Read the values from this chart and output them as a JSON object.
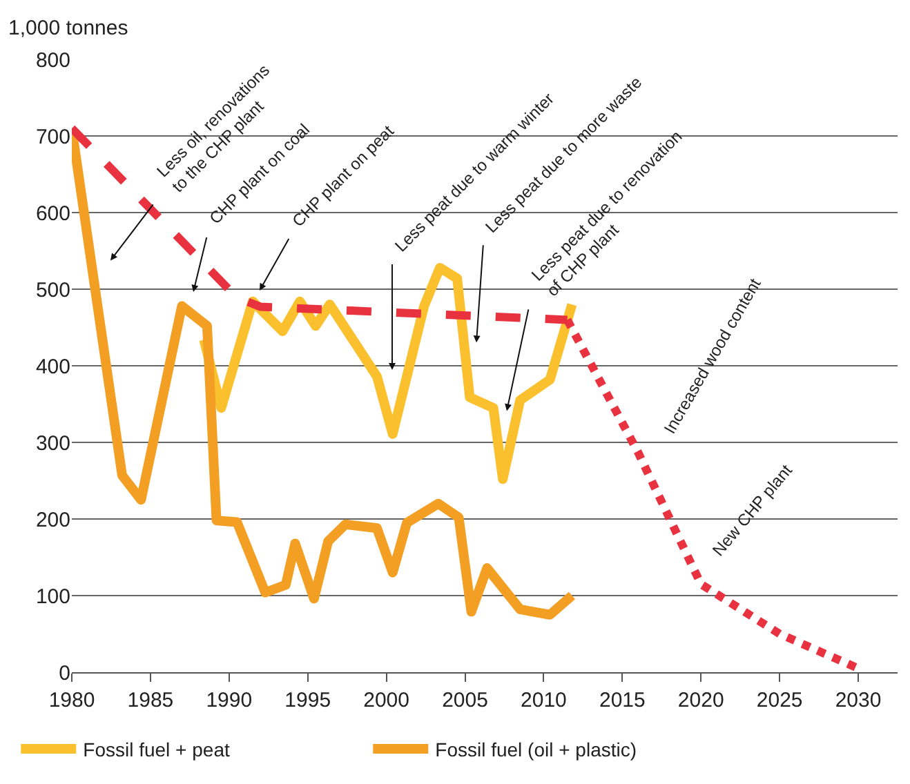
{
  "chart_data": {
    "type": "line",
    "ylabel": "1,000 tonnes",
    "xlim": [
      1980,
      2032.5
    ],
    "xticks": [
      1980,
      1985,
      1990,
      1995,
      2000,
      2005,
      2010,
      2015,
      2020,
      2025,
      2030
    ],
    "ylim": [
      0,
      800
    ],
    "yticks": [
      0,
      100,
      200,
      300,
      400,
      500,
      600,
      700,
      800
    ],
    "grid": "y",
    "legend": "bottom",
    "marker": "none",
    "series": [
      {
        "name": "Fossil fuel + peat",
        "color": "#fbc02d",
        "line_style": "solid",
        "x": [
          1988.4,
          1989.5,
          1991.5,
          1993.4,
          1994.5,
          1995.5,
          1996.4,
          1999.4,
          2000.4,
          2002.4,
          2003.4,
          2004.5,
          2005.3,
          2006.8,
          2007.4,
          2008.5,
          2010.4,
          2011.8
        ],
        "values": [
          434,
          345,
          484,
          445,
          484,
          452,
          480,
          386,
          311,
          478,
          528,
          514,
          359,
          345,
          252,
          355,
          382,
          480
        ]
      },
      {
        "name": "Fossil fuel (oil + plastic)",
        "color": "#f29f24",
        "line_style": "solid",
        "x": [
          1980,
          1983.2,
          1984.4,
          1987,
          1988.6,
          1989.2,
          1990.5,
          1992.3,
          1993.6,
          1994.2,
          1995.4,
          1996.3,
          1997.4,
          1999.4,
          2000.4,
          2001.3,
          2003.3,
          2004.6,
          2005.4,
          2006.4,
          2008.5,
          2010.4,
          2011.8
        ],
        "values": [
          710,
          257,
          225,
          478,
          452,
          198,
          196,
          104,
          114,
          168,
          96,
          171,
          193,
          188,
          130,
          195,
          220,
          202,
          79,
          136,
          82,
          75,
          100
        ]
      },
      {
        "color": "#e8323f",
        "line_style": "dashed",
        "x": [
          1980,
          1990.5,
          1992,
          2000,
          2011.5
        ],
        "values": [
          710,
          489,
          477,
          470,
          460
        ]
      },
      {
        "color": "#e8323f",
        "line_style": "dotted",
        "x": [
          2011.5,
          2016,
          2020,
          2025,
          2030
        ],
        "values": [
          460,
          287,
          115,
          50,
          5
        ]
      }
    ],
    "annotations": [
      "Less oil, renovations\nto the CHP plant",
      "CHP plant on coal",
      "CHP plant on peat",
      "Less peat due to warm winter",
      "Less peat due to more waste",
      "Less peat due to renovation\nof CHP plant",
      "Increased wood content",
      "New CHP plant"
    ]
  }
}
